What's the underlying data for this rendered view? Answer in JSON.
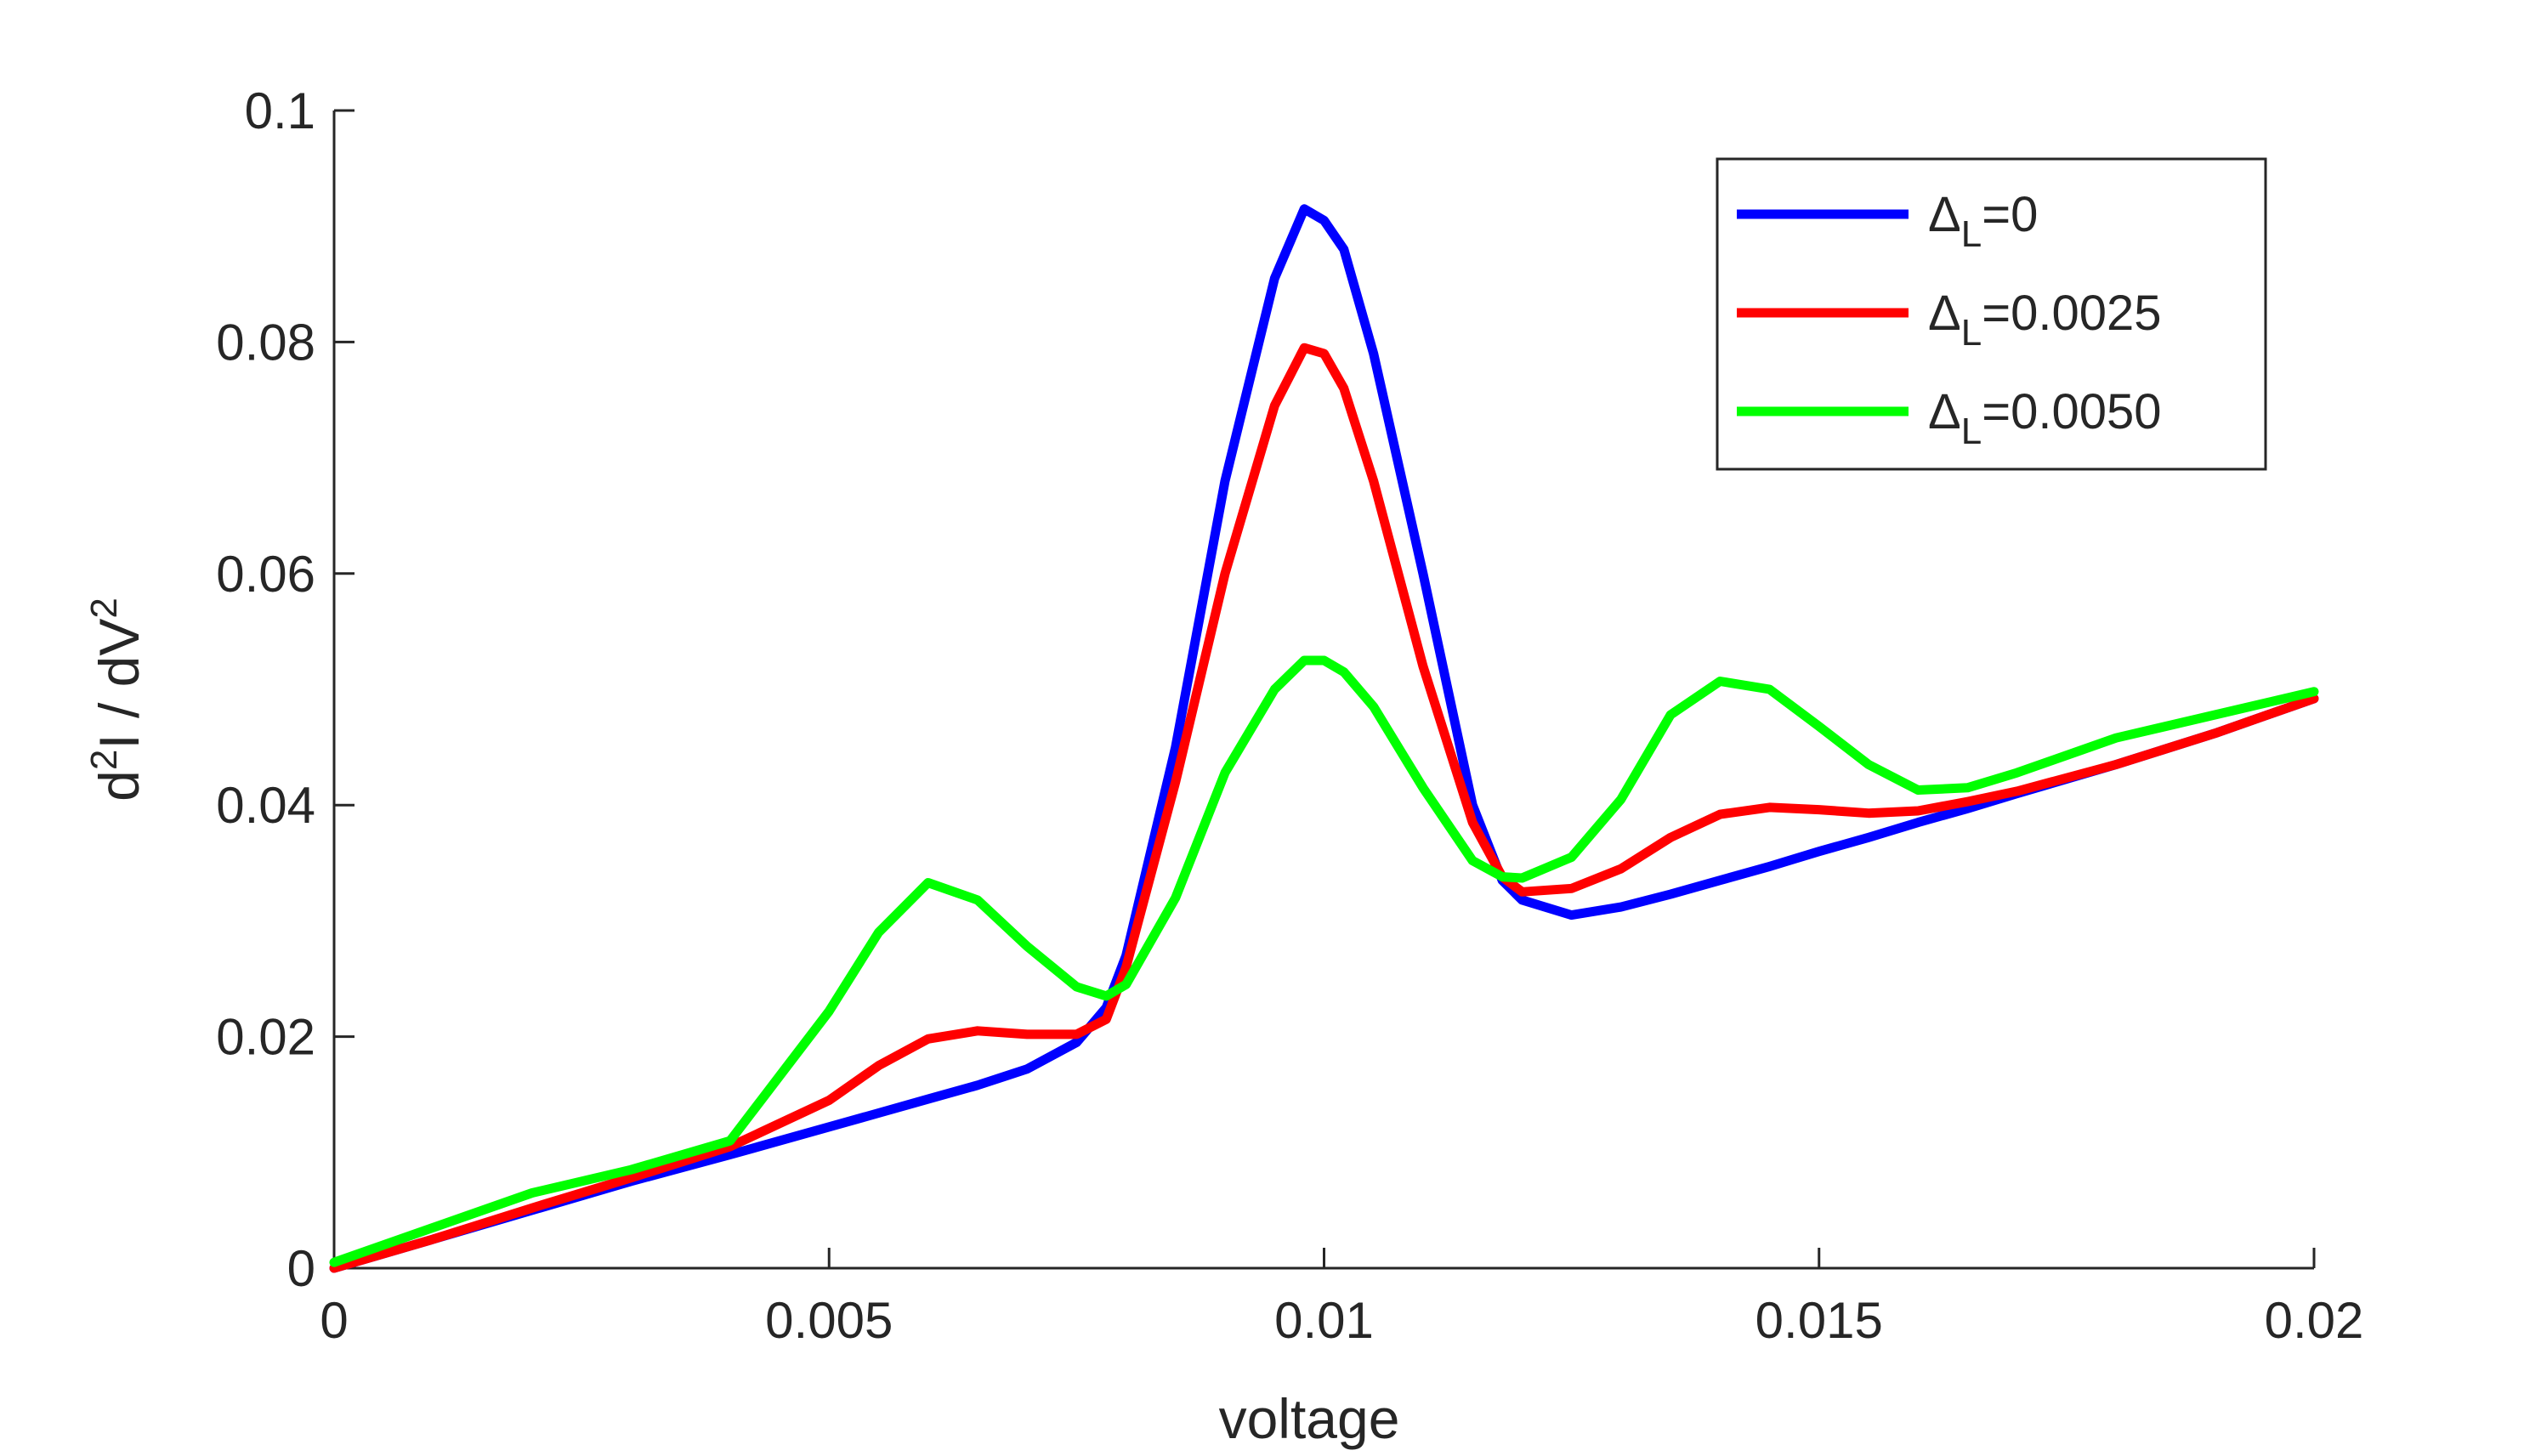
{
  "chart_data": {
    "type": "line",
    "title": "",
    "xlabel": "voltage",
    "ylabel": {
      "base1": "d",
      "sup1": "2",
      "mid": "I / dV",
      "sup2": "2"
    },
    "xlim": [
      0,
      0.02
    ],
    "ylim": [
      0,
      0.1
    ],
    "xticks": [
      0,
      0.005,
      0.01,
      0.015,
      0.02
    ],
    "xtick_labels": [
      "0",
      "0.005",
      "0.01",
      "0.015",
      "0.02"
    ],
    "yticks": [
      0,
      0.02,
      0.04,
      0.06,
      0.08,
      0.1
    ],
    "ytick_labels": [
      "0",
      "0.02",
      "0.04",
      "0.06",
      "0.08",
      "0.1"
    ],
    "grid": false,
    "legend_position": "top-right",
    "x": [
      0,
      0.001,
      0.002,
      0.003,
      0.004,
      0.005,
      0.0055,
      0.006,
      0.0065,
      0.007,
      0.0075,
      0.0078,
      0.008,
      0.0085,
      0.009,
      0.0095,
      0.0098,
      0.01,
      0.0102,
      0.0105,
      0.011,
      0.0115,
      0.0118,
      0.012,
      0.0125,
      0.013,
      0.0135,
      0.014,
      0.0145,
      0.015,
      0.0155,
      0.016,
      0.0165,
      0.017,
      0.018,
      0.019,
      0.02
    ],
    "series": [
      {
        "name": "=0",
        "name_symbol": "Δ",
        "name_sub": "L",
        "color": "#0000ff",
        "values": [
          0,
          0.0025,
          0.005,
          0.0075,
          0.0098,
          0.0122,
          0.0134,
          0.0146,
          0.0158,
          0.0172,
          0.0195,
          0.0225,
          0.027,
          0.045,
          0.068,
          0.0855,
          0.0915,
          0.0905,
          0.088,
          0.079,
          0.06,
          0.04,
          0.0335,
          0.0318,
          0.0305,
          0.0312,
          0.0323,
          0.0335,
          0.0347,
          0.036,
          0.0372,
          0.0385,
          0.0397,
          0.041,
          0.0435,
          0.0462,
          0.0492
        ]
      },
      {
        "name": "=0.0025",
        "name_symbol": "Δ",
        "name_sub": "L",
        "color": "#ff0000",
        "values": [
          0,
          0.0025,
          0.0052,
          0.0078,
          0.0105,
          0.0145,
          0.0175,
          0.0198,
          0.0205,
          0.0202,
          0.0202,
          0.0215,
          0.026,
          0.042,
          0.06,
          0.0745,
          0.0795,
          0.079,
          0.076,
          0.068,
          0.052,
          0.0385,
          0.0338,
          0.0325,
          0.0328,
          0.0345,
          0.0372,
          0.0392,
          0.0398,
          0.0396,
          0.0393,
          0.0395,
          0.0403,
          0.0412,
          0.0435,
          0.0462,
          0.0492
        ]
      },
      {
        "name": "=0.0050",
        "name_symbol": "Δ",
        "name_sub": "L",
        "color": "#00ff00",
        "values": [
          0.0005,
          0.0035,
          0.0065,
          0.0085,
          0.011,
          0.0222,
          0.029,
          0.0333,
          0.0318,
          0.0278,
          0.0243,
          0.0235,
          0.0245,
          0.032,
          0.0428,
          0.05,
          0.0525,
          0.0525,
          0.0515,
          0.0485,
          0.0415,
          0.0352,
          0.0338,
          0.0337,
          0.0355,
          0.0405,
          0.0478,
          0.0507,
          0.05,
          0.0468,
          0.0435,
          0.0413,
          0.0415,
          0.0428,
          0.0458,
          0.0478,
          0.0498
        ]
      }
    ]
  }
}
